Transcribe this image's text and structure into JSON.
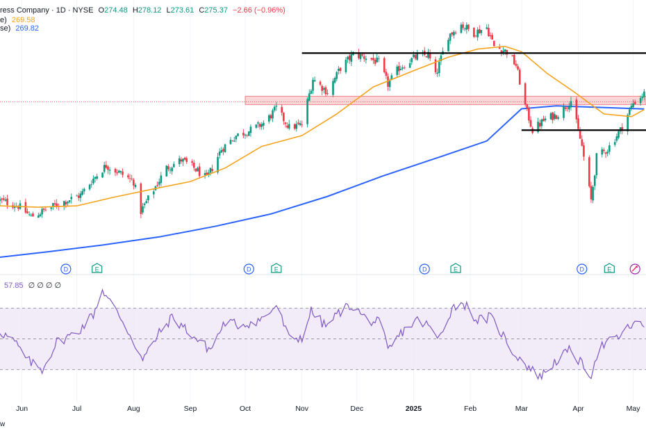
{
  "header": {
    "title": "ress Company · 1D · NYSE",
    "open_label": "O",
    "open": "274.48",
    "high_label": "H",
    "high": "278.12",
    "low_label": "L",
    "low": "273.61",
    "close_label": "C",
    "close": "275.37",
    "change": "−2.66 (−0.96%)",
    "ma50_label": "e)",
    "ma50_value": "269.58",
    "ma200_label": "se)",
    "ma200_value": "269.82"
  },
  "rsi_header": {
    "value": "57.85",
    "extras": "∅ ∅ ∅ ∅"
  },
  "footer_text": "w",
  "colors": {
    "up": "#089981",
    "down": "#f23645",
    "ma50": "#f7a21b",
    "ma200": "#2962ff",
    "rsi": "#7e57c2",
    "rsi_band": "#ede7f6",
    "zone": "#f8c8c8",
    "zone_border": "#f23645",
    "level": "#000000"
  },
  "event_markers": [
    {
      "letter": "D",
      "date": "2024-06-25"
    },
    {
      "letter": "E",
      "date": "2024-07-12"
    },
    {
      "letter": "D",
      "date": "2024-10-03"
    },
    {
      "letter": "E",
      "date": "2024-10-18"
    },
    {
      "letter": "D",
      "date": "2025-01-07"
    },
    {
      "letter": "E",
      "date": "2025-01-24"
    },
    {
      "letter": "D",
      "date": "2025-04-03"
    },
    {
      "letter": "E",
      "date": "2025-04-18"
    },
    {
      "letter": "",
      "date": "2025-05-02",
      "icon": "sparkle-icon"
    }
  ],
  "chart_data": [
    {
      "type": "candlestick",
      "x_type": "date",
      "x_range": [
        "2024-05-20",
        "2025-05-08"
      ],
      "ylim": [
        215,
        305
      ],
      "x_ticks": [
        "Jun",
        "Jul",
        "Aug",
        "Sep",
        "Oct",
        "Nov",
        "Dec",
        "2025",
        "Feb",
        "Mar",
        "Apr",
        "May"
      ],
      "x_tick_dates": [
        "2024-06-01",
        "2024-07-01",
        "2024-08-01",
        "2024-09-01",
        "2024-10-01",
        "2024-11-01",
        "2024-12-01",
        "2025-01-01",
        "2025-02-01",
        "2025-03-01",
        "2025-04-01",
        "2025-05-01"
      ],
      "close_path": [
        [
          "2024-05-20",
          236
        ],
        [
          "2024-05-30",
          234
        ],
        [
          "2024-06-06",
          230
        ],
        [
          "2024-06-14",
          232.5
        ],
        [
          "2024-06-22",
          235
        ],
        [
          "2024-07-03",
          238
        ],
        [
          "2024-07-10",
          244
        ],
        [
          "2024-07-17",
          249
        ],
        [
          "2024-07-25",
          246
        ],
        [
          "2024-08-01",
          243
        ],
        [
          "2024-08-05",
          232
        ],
        [
          "2024-08-12",
          240
        ],
        [
          "2024-08-19",
          248
        ],
        [
          "2024-08-27",
          251
        ],
        [
          "2024-09-03",
          248
        ],
        [
          "2024-09-10",
          244
        ],
        [
          "2024-09-18",
          255
        ],
        [
          "2024-09-26",
          260
        ],
        [
          "2024-10-04",
          262
        ],
        [
          "2024-10-12",
          265
        ],
        [
          "2024-10-18",
          270
        ],
        [
          "2024-10-25",
          263
        ],
        [
          "2024-11-01",
          264
        ],
        [
          "2024-11-07",
          281
        ],
        [
          "2024-11-15",
          276
        ],
        [
          "2024-11-22",
          285
        ],
        [
          "2024-11-29",
          290
        ],
        [
          "2024-12-06",
          289
        ],
        [
          "2024-12-13",
          287
        ],
        [
          "2024-12-18",
          279
        ],
        [
          "2024-12-24",
          285
        ],
        [
          "2025-01-02",
          289
        ],
        [
          "2025-01-09",
          290
        ],
        [
          "2025-01-13",
          282
        ],
        [
          "2025-01-20",
          297
        ],
        [
          "2025-01-27",
          301
        ],
        [
          "2025-02-03",
          298
        ],
        [
          "2025-02-10",
          300
        ],
        [
          "2025-02-14",
          293
        ],
        [
          "2025-02-21",
          291
        ],
        [
          "2025-02-26",
          286
        ],
        [
          "2025-03-03",
          271
        ],
        [
          "2025-03-07",
          262
        ],
        [
          "2025-03-14",
          266
        ],
        [
          "2025-03-21",
          268
        ],
        [
          "2025-03-28",
          273
        ],
        [
          "2025-04-03",
          256
        ],
        [
          "2025-04-08",
          236
        ],
        [
          "2025-04-11",
          252
        ],
        [
          "2025-04-17",
          255
        ],
        [
          "2025-04-24",
          262
        ],
        [
          "2025-05-01",
          272
        ],
        [
          "2025-05-07",
          275.37
        ]
      ],
      "candles_generated_from": "close_path",
      "series": [
        {
          "name": "MA 50",
          "value": 269.58
        },
        {
          "name": "MA 200",
          "value": 269.82
        }
      ],
      "ma50_path": [
        [
          "2024-05-20",
          234
        ],
        [
          "2024-06-10",
          233.5
        ],
        [
          "2024-07-01",
          234
        ],
        [
          "2024-07-20",
          237
        ],
        [
          "2024-08-10",
          240
        ],
        [
          "2024-09-01",
          243
        ],
        [
          "2024-09-20",
          248
        ],
        [
          "2024-10-10",
          256
        ],
        [
          "2024-11-01",
          260
        ],
        [
          "2024-11-20",
          268
        ],
        [
          "2024-12-10",
          278
        ],
        [
          "2025-01-01",
          284
        ],
        [
          "2025-01-20",
          289
        ],
        [
          "2025-02-05",
          292
        ],
        [
          "2025-02-20",
          293
        ],
        [
          "2025-03-01",
          291
        ],
        [
          "2025-03-15",
          283
        ],
        [
          "2025-03-30",
          276
        ],
        [
          "2025-04-15",
          268
        ],
        [
          "2025-04-30",
          267
        ],
        [
          "2025-05-07",
          269.58
        ]
      ],
      "ma200_path": [
        [
          "2024-05-20",
          215
        ],
        [
          "2024-06-15",
          217
        ],
        [
          "2024-07-15",
          219.5
        ],
        [
          "2024-08-15",
          222.5
        ],
        [
          "2024-09-15",
          226.5
        ],
        [
          "2024-10-15",
          231
        ],
        [
          "2024-11-15",
          237.5
        ],
        [
          "2024-12-15",
          245
        ],
        [
          "2025-01-15",
          252
        ],
        [
          "2025-02-10",
          258
        ],
        [
          "2025-03-01",
          269.9
        ],
        [
          "2025-03-20",
          271
        ],
        [
          "2025-04-10",
          270.5
        ],
        [
          "2025-05-07",
          269.82
        ]
      ],
      "resistance_zone": [
        271.5,
        274.5
      ],
      "resistance_zone_start": "2024-10-01",
      "resistance_zone_reference_price": 272.5,
      "horizontal_levels": [
        {
          "value": 290.5,
          "start": "2024-11-01"
        },
        {
          "value": 262,
          "start": "2025-03-01"
        }
      ]
    },
    {
      "type": "line",
      "name": "RSI",
      "ylim": [
        15,
        85
      ],
      "bands": [
        30,
        50,
        70
      ],
      "value": 57.85,
      "path": [
        [
          "2024-05-20",
          55
        ],
        [
          "2024-05-28",
          48
        ],
        [
          "2024-06-04",
          36
        ],
        [
          "2024-06-12",
          30
        ],
        [
          "2024-06-20",
          48
        ],
        [
          "2024-07-01",
          54
        ],
        [
          "2024-07-10",
          66
        ],
        [
          "2024-07-15",
          82
        ],
        [
          "2024-07-18",
          76
        ],
        [
          "2024-07-26",
          62
        ],
        [
          "2024-08-02",
          46
        ],
        [
          "2024-08-06",
          36
        ],
        [
          "2024-08-14",
          52
        ],
        [
          "2024-08-22",
          64
        ],
        [
          "2024-08-30",
          56
        ],
        [
          "2024-09-06",
          48
        ],
        [
          "2024-09-12",
          43
        ],
        [
          "2024-09-20",
          61
        ],
        [
          "2024-09-28",
          59
        ],
        [
          "2024-10-06",
          61
        ],
        [
          "2024-10-12",
          64
        ],
        [
          "2024-10-18",
          72
        ],
        [
          "2024-10-25",
          50
        ],
        [
          "2024-11-01",
          51
        ],
        [
          "2024-11-06",
          68
        ],
        [
          "2024-11-14",
          58
        ],
        [
          "2024-11-22",
          68
        ],
        [
          "2024-11-28",
          72
        ],
        [
          "2024-12-06",
          63
        ],
        [
          "2024-12-14",
          60
        ],
        [
          "2024-12-18",
          42
        ],
        [
          "2024-12-26",
          55
        ],
        [
          "2025-01-03",
          62
        ],
        [
          "2025-01-10",
          58
        ],
        [
          "2025-01-14",
          49
        ],
        [
          "2025-01-22",
          70
        ],
        [
          "2025-01-28",
          74
        ],
        [
          "2025-02-05",
          62
        ],
        [
          "2025-02-12",
          64
        ],
        [
          "2025-02-18",
          54
        ],
        [
          "2025-02-24",
          42
        ],
        [
          "2025-03-02",
          35
        ],
        [
          "2025-03-08",
          28
        ],
        [
          "2025-03-12",
          26
        ],
        [
          "2025-03-20",
          36
        ],
        [
          "2025-03-28",
          43
        ],
        [
          "2025-04-03",
          33
        ],
        [
          "2025-04-08",
          27
        ],
        [
          "2025-04-12",
          44
        ],
        [
          "2025-04-18",
          48
        ],
        [
          "2025-04-24",
          52
        ],
        [
          "2025-05-01",
          60
        ],
        [
          "2025-05-07",
          57.85
        ]
      ]
    }
  ]
}
